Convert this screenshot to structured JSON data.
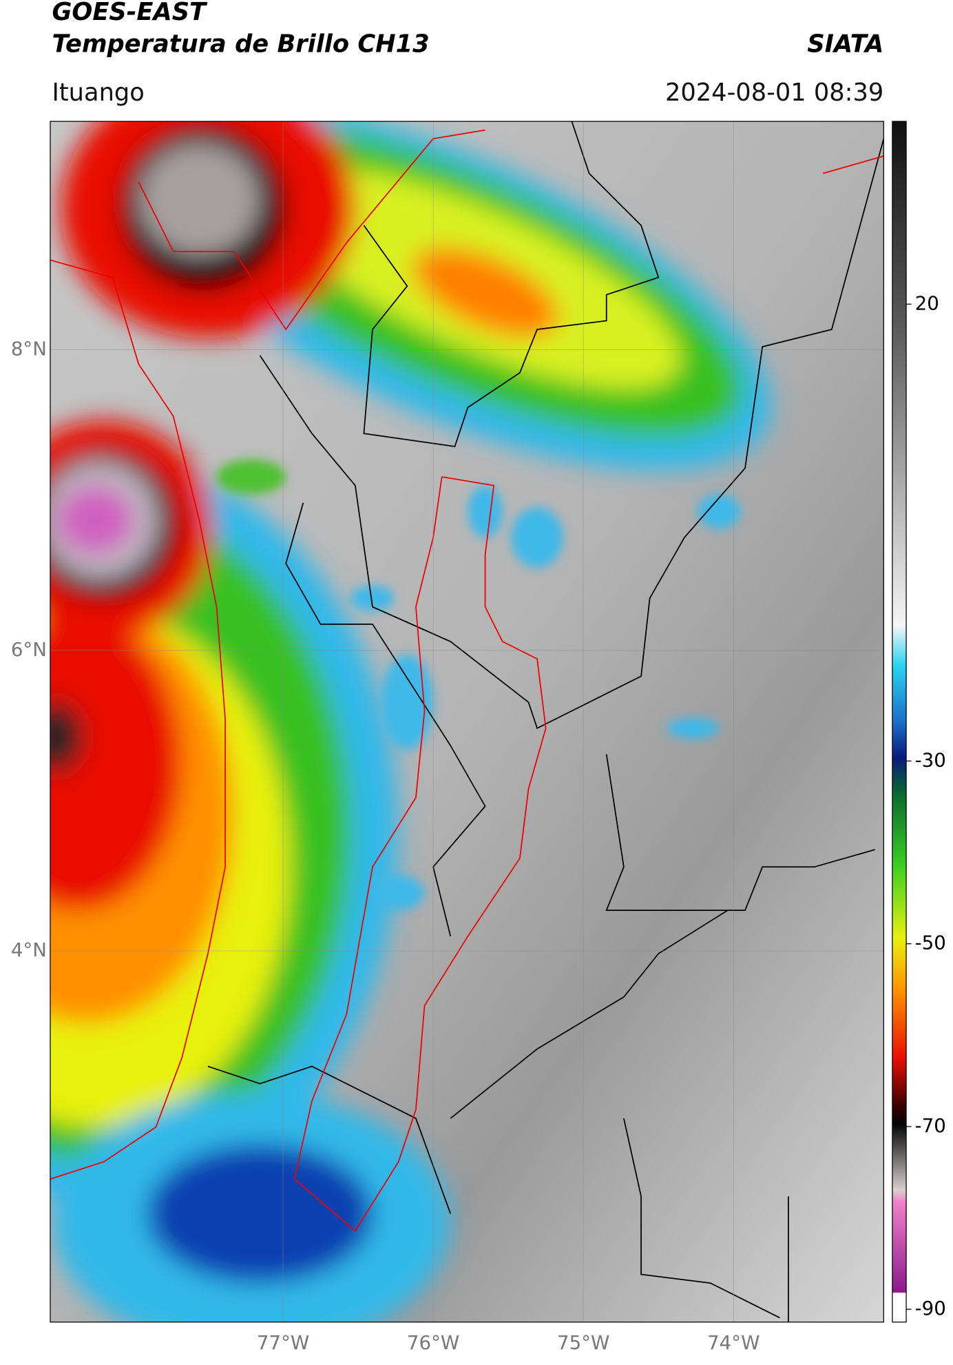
{
  "header": {
    "title": "GOES-EAST",
    "subtitle": "Temperatura de Brillo CH13",
    "source": "SIATA",
    "location": "Ituango",
    "datetime": "2024-08-01 08:39"
  },
  "map": {
    "xlim": [
      -78.55,
      -73.0
    ],
    "ylim": [
      1.53,
      9.52
    ],
    "lat_ticks": [
      {
        "value": 8,
        "label": "8°N"
      },
      {
        "value": 6,
        "label": "6°N"
      },
      {
        "value": 4,
        "label": "4°N"
      }
    ],
    "lon_ticks": [
      {
        "value": -77,
        "label": "77°W"
      },
      {
        "value": -76,
        "label": "76°W"
      },
      {
        "value": -75,
        "label": "75°W"
      },
      {
        "value": -74,
        "label": "74°W"
      }
    ],
    "grid": true
  },
  "colorbar": {
    "lim": [
      -91.4,
      40
    ],
    "ticks": [
      20,
      -30,
      -50,
      -70,
      -90
    ]
  }
}
